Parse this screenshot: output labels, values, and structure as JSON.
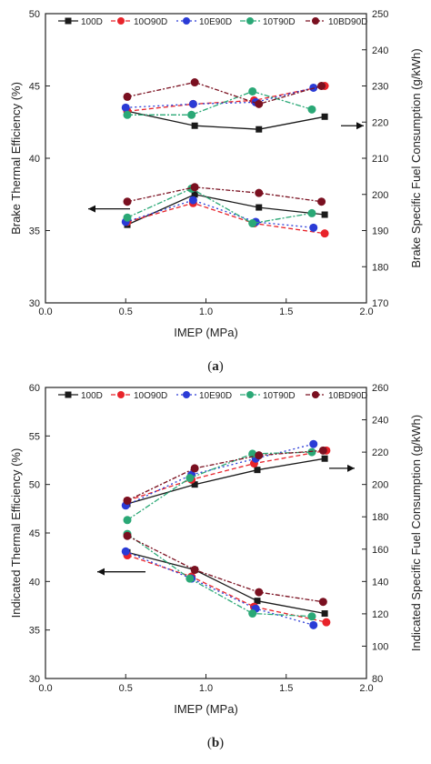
{
  "legend_colors": {
    "100D": "#1a1a1a",
    "10O90D": "#e8232a",
    "10E90D": "#2a3bd6",
    "10T90D": "#2aa876",
    "10BD90D": "#7a1020"
  },
  "chart_data": [
    {
      "type": "line",
      "caption_letter": "a",
      "xlabel": "IMEP (MPa)",
      "ylabel_left": "Brake Thermal Efficiency (%)",
      "ylabel_right": "Brake Specific Fuel Consumption (g/kWh)",
      "xlim": [
        0.0,
        2.0
      ],
      "xticks": [
        "0.0",
        "0.5",
        "1.0",
        "1.5",
        "2.0"
      ],
      "ylim_left": [
        30,
        50
      ],
      "yticks_left": [
        "30",
        "35",
        "40",
        "45",
        "50"
      ],
      "ylim_right": [
        170,
        250
      ],
      "yticks_right": [
        "170",
        "180",
        "190",
        "200",
        "210",
        "220",
        "230",
        "240",
        "250"
      ],
      "legend": [
        "100D",
        "10O90D",
        "10E90D",
        "10T90D",
        "10BD90D"
      ],
      "series_left": [
        {
          "name": "100D",
          "x": [
            0.51,
            0.93,
            1.33,
            1.74
          ],
          "y": [
            35.4,
            37.5,
            36.6,
            36.1
          ]
        },
        {
          "name": "10O90D",
          "x": [
            0.51,
            0.92,
            1.3,
            1.74
          ],
          "y": [
            35.6,
            36.9,
            35.5,
            34.8
          ]
        },
        {
          "name": "10E90D",
          "x": [
            0.5,
            0.92,
            1.31,
            1.67
          ],
          "y": [
            35.6,
            37.1,
            35.6,
            35.2
          ]
        },
        {
          "name": "10T90D",
          "x": [
            0.51,
            0.91,
            1.29,
            1.66
          ],
          "y": [
            35.9,
            37.9,
            35.5,
            36.2
          ]
        },
        {
          "name": "10BD90D",
          "x": [
            0.51,
            0.93,
            1.33,
            1.72
          ],
          "y": [
            37.0,
            38.0,
            37.6,
            37.0
          ]
        }
      ],
      "series_right": [
        {
          "name": "100D",
          "x": [
            0.51,
            0.93,
            1.33,
            1.74
          ],
          "y": [
            223.0,
            219.0,
            218.0,
            221.5
          ]
        },
        {
          "name": "10O90D",
          "x": [
            0.51,
            0.92,
            1.3,
            1.74
          ],
          "y": [
            223.0,
            225.0,
            226.0,
            230.0
          ]
        },
        {
          "name": "10E90D",
          "x": [
            0.5,
            0.92,
            1.31,
            1.67
          ],
          "y": [
            224.0,
            225.0,
            225.5,
            229.5
          ]
        },
        {
          "name": "10T90D",
          "x": [
            0.51,
            0.91,
            1.29,
            1.66
          ],
          "y": [
            222.0,
            222.0,
            228.5,
            223.5
          ]
        },
        {
          "name": "10BD90D",
          "x": [
            0.51,
            0.93,
            1.33,
            1.72
          ],
          "y": [
            227.0,
            231.0,
            225.0,
            230.0
          ]
        }
      ]
    },
    {
      "type": "line",
      "caption_letter": "b",
      "xlabel": "IMEP (MPa)",
      "ylabel_left": "Indicated Thermal Efficiency (%)",
      "ylabel_right": "Indicated Specific Fuel Consumption (g/kWh)",
      "xlim": [
        0.0,
        2.0
      ],
      "xticks": [
        "0.0",
        "0.5",
        "1.0",
        "1.5",
        "2.0"
      ],
      "ylim_left": [
        30,
        60
      ],
      "yticks_left": [
        "30",
        "35",
        "40",
        "45",
        "50",
        "55",
        "60"
      ],
      "ylim_right": [
        80,
        260
      ],
      "yticks_right": [
        "80",
        "100",
        "120",
        "140",
        "160",
        "180",
        "200",
        "220",
        "240",
        "260"
      ],
      "legend": [
        "100D",
        "10O90D",
        "10E90D",
        "10T90D",
        "10BD90D"
      ],
      "series_left": [
        {
          "name": "100D",
          "x": [
            0.51,
            0.93,
            1.32,
            1.74
          ],
          "y": [
            43.0,
            41.2,
            38.0,
            36.7
          ]
        },
        {
          "name": "10O90D",
          "x": [
            0.51,
            0.91,
            1.3,
            1.75
          ],
          "y": [
            42.7,
            40.5,
            37.4,
            35.8
          ]
        },
        {
          "name": "10E90D",
          "x": [
            0.5,
            0.91,
            1.31,
            1.67
          ],
          "y": [
            43.1,
            40.3,
            37.2,
            35.5
          ]
        },
        {
          "name": "10T90D",
          "x": [
            0.51,
            0.9,
            1.29,
            1.66
          ],
          "y": [
            44.9,
            40.3,
            36.7,
            36.4
          ]
        },
        {
          "name": "10BD90D",
          "x": [
            0.51,
            0.93,
            1.33,
            1.73
          ],
          "y": [
            44.7,
            41.2,
            38.9,
            37.9
          ]
        }
      ],
      "series_right": [
        {
          "name": "100D",
          "x": [
            0.51,
            0.93,
            1.32,
            1.74
          ],
          "y": [
            188.0,
            200.0,
            209.0,
            216.0
          ]
        },
        {
          "name": "10O90D",
          "x": [
            0.51,
            0.91,
            1.3,
            1.75
          ],
          "y": [
            190.0,
            203.0,
            213.0,
            221.0
          ]
        },
        {
          "name": "10E90D",
          "x": [
            0.5,
            0.91,
            1.31,
            1.67
          ],
          "y": [
            187.0,
            206.0,
            216.0,
            225.0
          ]
        },
        {
          "name": "10T90D",
          "x": [
            0.51,
            0.9,
            1.29,
            1.66
          ],
          "y": [
            178.0,
            204.0,
            219.0,
            220.0
          ]
        },
        {
          "name": "10BD90D",
          "x": [
            0.51,
            0.93,
            1.33,
            1.73
          ],
          "y": [
            190.0,
            210.0,
            218.0,
            221.0
          ]
        }
      ]
    }
  ]
}
